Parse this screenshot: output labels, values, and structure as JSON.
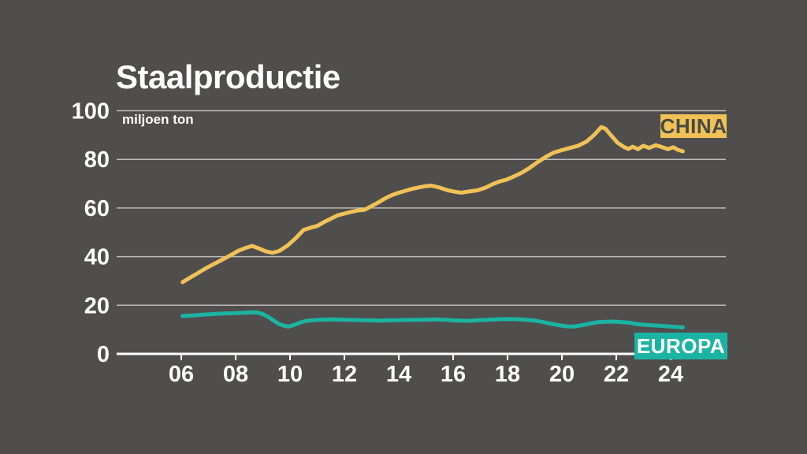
{
  "header": {
    "title": "Staalproductie",
    "unit_label": "miljoen ton"
  },
  "series_labels": {
    "china": "CHINA",
    "europa": "EUROPA"
  },
  "colors": {
    "background": "#4F4E4C",
    "china": "#F0C157",
    "europa": "#1BB4A3",
    "china_badge_text": "#4A4945",
    "europa_badge_text": "#FFFFFF",
    "axis": "#FFFFFF",
    "gridline": "rgba(255,255,255,0.62)",
    "tick_label": "#FFFFFF"
  },
  "chart_data": {
    "type": "line",
    "title": "Staalproductie",
    "xlabel": "",
    "ylabel": "miljoen ton",
    "ylim": [
      0,
      100
    ],
    "grid": true,
    "legend_position": "badges-on-plot",
    "y_ticks": [
      0,
      20,
      40,
      60,
      80,
      100
    ],
    "y_tick_labels": [
      "0",
      "20",
      "40",
      "60",
      "80",
      "100"
    ],
    "x_tick_years": [
      2006,
      2008,
      2010,
      2012,
      2014,
      2016,
      2018,
      2020,
      2022,
      2024
    ],
    "x_tick_labels": [
      "06",
      "08",
      "10",
      "12",
      "14",
      "16",
      "18",
      "20",
      "22",
      "24"
    ],
    "series": [
      {
        "name": "CHINA",
        "color": "#F0C157",
        "points": [
          [
            2006.05,
            29.5
          ],
          [
            2006.3,
            31.2
          ],
          [
            2006.6,
            33.2
          ],
          [
            2006.9,
            35.2
          ],
          [
            2007.2,
            37.0
          ],
          [
            2007.5,
            38.7
          ],
          [
            2007.8,
            40.5
          ],
          [
            2008.1,
            42.4
          ],
          [
            2008.35,
            43.5
          ],
          [
            2008.6,
            44.4
          ],
          [
            2008.85,
            43.4
          ],
          [
            2009.1,
            42.2
          ],
          [
            2009.35,
            41.6
          ],
          [
            2009.6,
            42.3
          ],
          [
            2009.9,
            44.5
          ],
          [
            2010.2,
            47.5
          ],
          [
            2010.5,
            51.0
          ],
          [
            2010.75,
            51.9
          ],
          [
            2011.0,
            52.6
          ],
          [
            2011.25,
            54.2
          ],
          [
            2011.5,
            55.6
          ],
          [
            2011.75,
            57.0
          ],
          [
            2012.0,
            57.7
          ],
          [
            2012.25,
            58.4
          ],
          [
            2012.5,
            59.0
          ],
          [
            2012.75,
            59.3
          ],
          [
            2013.0,
            60.8
          ],
          [
            2013.25,
            62.3
          ],
          [
            2013.5,
            64.0
          ],
          [
            2013.75,
            65.3
          ],
          [
            2014.0,
            66.3
          ],
          [
            2014.25,
            67.1
          ],
          [
            2014.5,
            67.9
          ],
          [
            2014.75,
            68.5
          ],
          [
            2015.0,
            69.0
          ],
          [
            2015.2,
            69.2
          ],
          [
            2015.5,
            68.4
          ],
          [
            2015.8,
            67.3
          ],
          [
            2016.05,
            66.7
          ],
          [
            2016.3,
            66.3
          ],
          [
            2016.6,
            66.8
          ],
          [
            2016.9,
            67.3
          ],
          [
            2017.2,
            68.4
          ],
          [
            2017.45,
            69.8
          ],
          [
            2017.7,
            70.9
          ],
          [
            2017.95,
            71.6
          ],
          [
            2018.2,
            72.8
          ],
          [
            2018.5,
            74.4
          ],
          [
            2018.8,
            76.4
          ],
          [
            2019.1,
            78.8
          ],
          [
            2019.4,
            81.0
          ],
          [
            2019.7,
            82.8
          ],
          [
            2020.0,
            83.8
          ],
          [
            2020.3,
            84.7
          ],
          [
            2020.6,
            85.6
          ],
          [
            2020.9,
            87.3
          ],
          [
            2021.2,
            90.2
          ],
          [
            2021.45,
            93.3
          ],
          [
            2021.6,
            92.6
          ],
          [
            2021.8,
            90.0
          ],
          [
            2022.05,
            86.8
          ],
          [
            2022.3,
            85.0
          ],
          [
            2022.45,
            84.3
          ],
          [
            2022.6,
            85.2
          ],
          [
            2022.8,
            84.2
          ],
          [
            2023.0,
            85.6
          ],
          [
            2023.2,
            84.7
          ],
          [
            2023.45,
            85.8
          ],
          [
            2023.65,
            85.2
          ],
          [
            2023.9,
            84.2
          ],
          [
            2024.1,
            85.0
          ],
          [
            2024.25,
            84.0
          ],
          [
            2024.45,
            83.3
          ]
        ]
      },
      {
        "name": "EUROPA",
        "color": "#1BB4A3",
        "points": [
          [
            2006.05,
            15.6
          ],
          [
            2006.4,
            15.8
          ],
          [
            2006.8,
            16.1
          ],
          [
            2007.2,
            16.4
          ],
          [
            2007.6,
            16.6
          ],
          [
            2008.0,
            16.8
          ],
          [
            2008.4,
            17.0
          ],
          [
            2008.75,
            17.1
          ],
          [
            2009.0,
            16.4
          ],
          [
            2009.2,
            15.2
          ],
          [
            2009.4,
            13.7
          ],
          [
            2009.6,
            12.3
          ],
          [
            2009.8,
            11.5
          ],
          [
            2009.95,
            11.2
          ],
          [
            2010.15,
            11.9
          ],
          [
            2010.4,
            13.0
          ],
          [
            2010.6,
            13.6
          ],
          [
            2010.9,
            13.9
          ],
          [
            2011.2,
            14.1
          ],
          [
            2011.5,
            14.2
          ],
          [
            2011.8,
            14.1
          ],
          [
            2012.1,
            14.0
          ],
          [
            2012.5,
            13.9
          ],
          [
            2012.9,
            13.8
          ],
          [
            2013.3,
            13.7
          ],
          [
            2013.7,
            13.8
          ],
          [
            2014.1,
            13.9
          ],
          [
            2014.5,
            14.0
          ],
          [
            2014.9,
            14.0
          ],
          [
            2015.3,
            14.2
          ],
          [
            2015.7,
            14.0
          ],
          [
            2016.0,
            13.8
          ],
          [
            2016.4,
            13.6
          ],
          [
            2016.7,
            13.7
          ],
          [
            2017.0,
            13.9
          ],
          [
            2017.4,
            14.1
          ],
          [
            2017.8,
            14.3
          ],
          [
            2018.2,
            14.3
          ],
          [
            2018.6,
            14.1
          ],
          [
            2019.0,
            13.7
          ],
          [
            2019.3,
            13.1
          ],
          [
            2019.6,
            12.4
          ],
          [
            2019.9,
            11.8
          ],
          [
            2020.2,
            11.3
          ],
          [
            2020.4,
            11.2
          ],
          [
            2020.7,
            11.7
          ],
          [
            2021.0,
            12.4
          ],
          [
            2021.3,
            13.0
          ],
          [
            2021.6,
            13.2
          ],
          [
            2021.9,
            13.3
          ],
          [
            2022.2,
            13.1
          ],
          [
            2022.5,
            12.8
          ],
          [
            2022.8,
            12.2
          ],
          [
            2023.1,
            11.9
          ],
          [
            2023.4,
            11.7
          ],
          [
            2023.7,
            11.5
          ],
          [
            2024.0,
            11.2
          ],
          [
            2024.2,
            11.1
          ],
          [
            2024.45,
            10.9
          ]
        ]
      }
    ]
  }
}
